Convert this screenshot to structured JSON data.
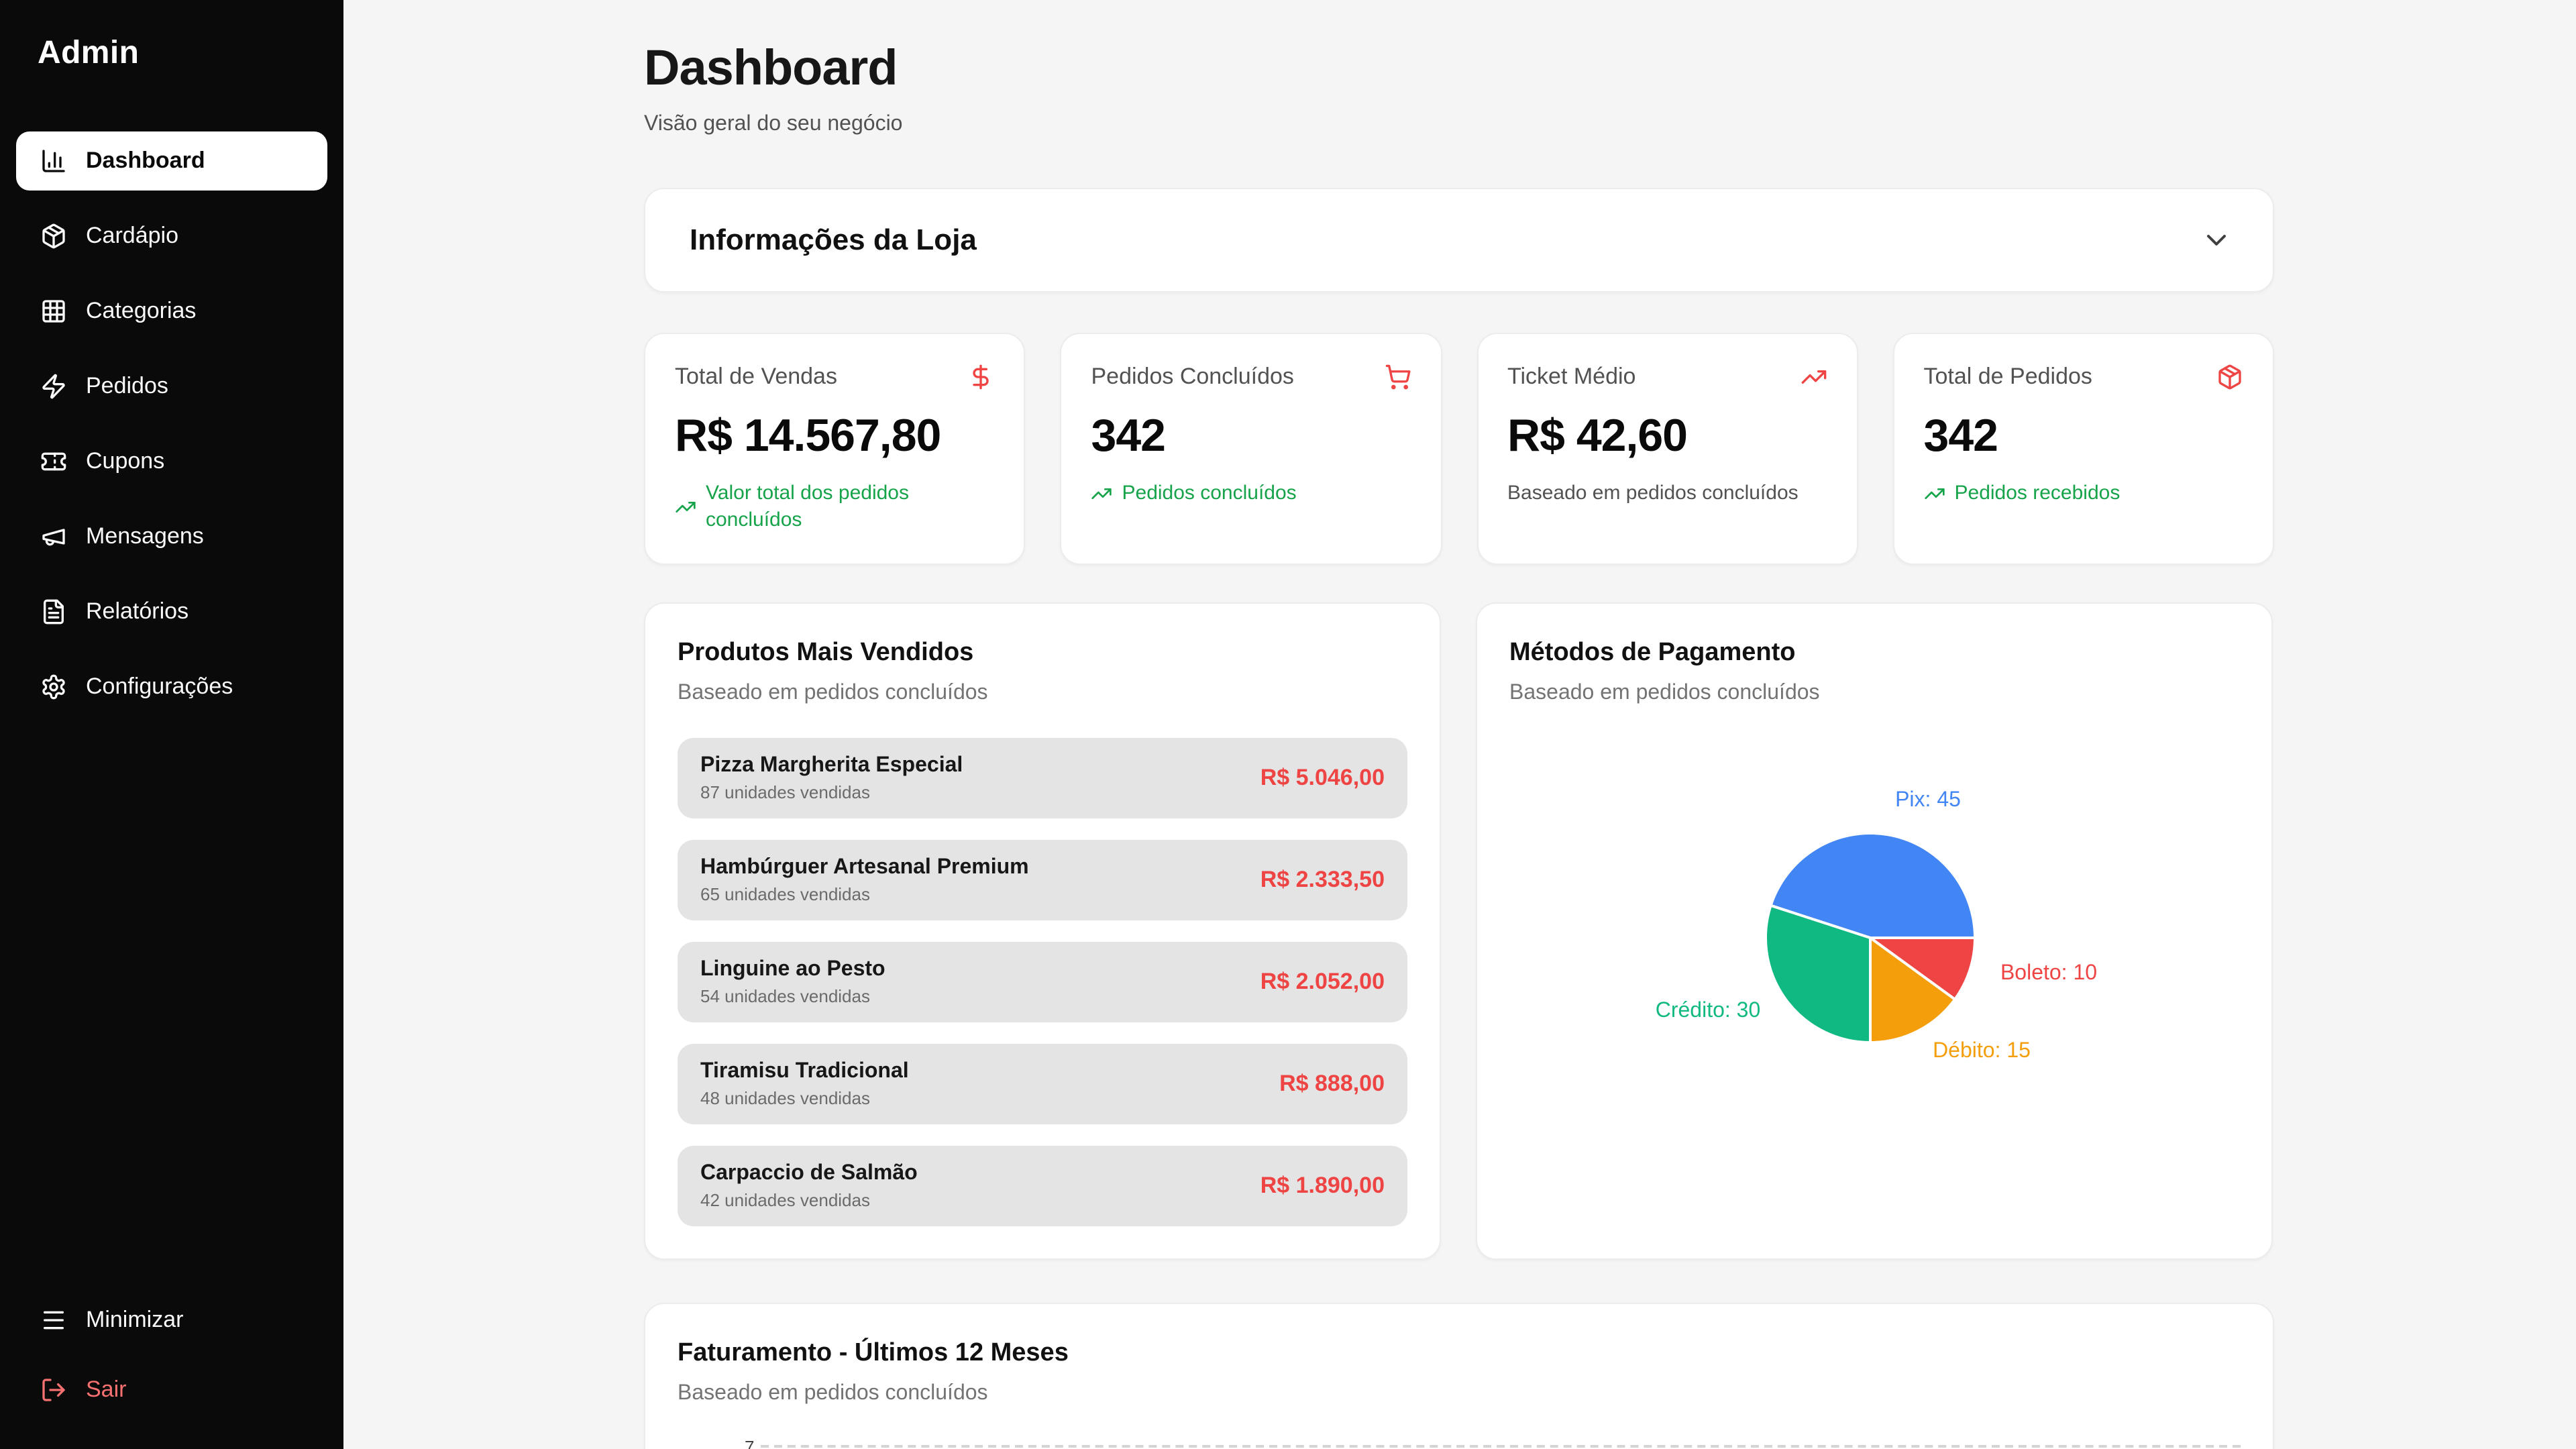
{
  "colors": {
    "accent_red": "#ef4444",
    "positive_green": "#16a34a",
    "sidebar_bg": "#0a0a0a",
    "page_bg": "#f5f5f5",
    "logout_red": "#f87171"
  },
  "sidebar": {
    "brand": "Admin",
    "items": [
      {
        "label": "Dashboard",
        "icon": "chart-column",
        "active": true
      },
      {
        "label": "Cardápio",
        "icon": "package",
        "active": false
      },
      {
        "label": "Categorias",
        "icon": "grid",
        "active": false
      },
      {
        "label": "Pedidos",
        "icon": "zap",
        "active": false
      },
      {
        "label": "Cupons",
        "icon": "ticket",
        "active": false
      },
      {
        "label": "Mensagens",
        "icon": "megaphone",
        "active": false
      },
      {
        "label": "Relatórios",
        "icon": "file-text",
        "active": false
      },
      {
        "label": "Configurações",
        "icon": "settings",
        "active": false
      }
    ],
    "footer_items": [
      {
        "label": "Minimizar",
        "icon": "menu",
        "danger": false
      },
      {
        "label": "Sair",
        "icon": "log-out",
        "danger": true
      }
    ]
  },
  "header": {
    "title": "Dashboard",
    "subtitle": "Visão geral do seu negócio"
  },
  "store_info": {
    "title": "Informações da Loja",
    "collapsed": true
  },
  "stats": [
    {
      "label": "Total de Vendas",
      "icon": "dollar-sign",
      "value": "R$ 14.567,80",
      "note": "Valor total dos pedidos concluídos",
      "note_type": "positive"
    },
    {
      "label": "Pedidos Concluídos",
      "icon": "shopping-cart",
      "value": "342",
      "note": "Pedidos concluídos",
      "note_type": "positive"
    },
    {
      "label": "Ticket Médio",
      "icon": "trending-up",
      "value": "R$ 42,60",
      "note": "Baseado em pedidos concluídos",
      "note_type": "neutral"
    },
    {
      "label": "Total de Pedidos",
      "icon": "package",
      "value": "342",
      "note": "Pedidos recebidos",
      "note_type": "positive"
    }
  ],
  "top_products": {
    "title": "Produtos Mais Vendidos",
    "subtitle": "Baseado em pedidos concluídos",
    "items": [
      {
        "name": "Pizza Margherita Especial",
        "units": "87 unidades vendidas",
        "total": "R$ 5.046,00"
      },
      {
        "name": "Hambúrguer Artesanal Premium",
        "units": "65 unidades vendidas",
        "total": "R$ 2.333,50"
      },
      {
        "name": "Linguine ao Pesto",
        "units": "54 unidades vendidas",
        "total": "R$ 2.052,00"
      },
      {
        "name": "Tiramisu Tradicional",
        "units": "48 unidades vendidas",
        "total": "R$ 888,00"
      },
      {
        "name": "Carpaccio de Salmão",
        "units": "42 unidades vendidas",
        "total": "R$ 1.890,00"
      }
    ]
  },
  "payment_methods": {
    "title": "Métodos de Pagamento",
    "subtitle": "Baseado em pedidos concluídos"
  },
  "revenue": {
    "title": "Faturamento - Últimos 12 Meses",
    "subtitle": "Baseado em pedidos concluídos",
    "partial_y_tick": "7"
  },
  "chart_data": [
    {
      "type": "pie",
      "title": "Métodos de Pagamento",
      "labels": [
        "Pix",
        "Boleto",
        "Débito",
        "Crédito"
      ],
      "values": [
        45,
        10,
        15,
        30
      ],
      "colors": [
        "#4285f4",
        "#ef4444",
        "#f59e0b",
        "#10b981"
      ],
      "label_format": "{label}: {value}",
      "legend_position": "around-slices"
    },
    {
      "type": "bar",
      "title": "Faturamento - Últimos 12 Meses",
      "subtitle": "Baseado em pedidos concluídos",
      "y_tick_partial": "7",
      "note_visible": "chart area cut off at bottom edge; only top dashed gridline visible"
    }
  ]
}
